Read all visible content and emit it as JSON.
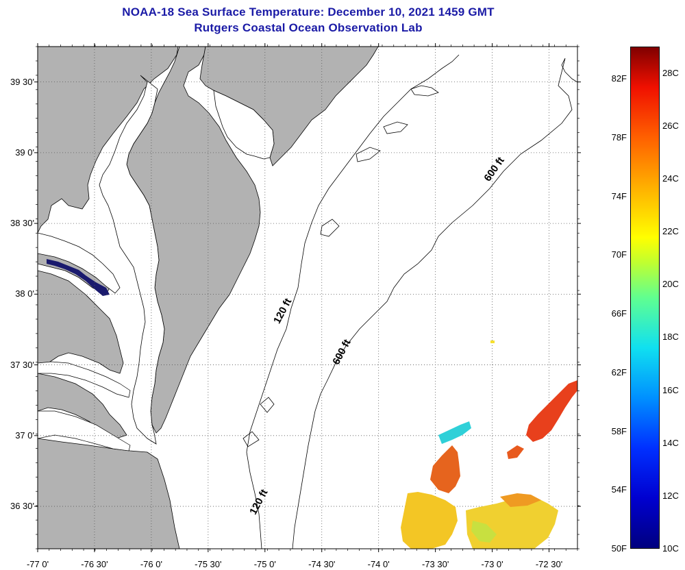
{
  "title": {
    "line1": "NOAA-18 Sea Surface Temperature:  December 10, 2021 1459 GMT",
    "line2": "Rutgers Coastal Ocean Observation Lab"
  },
  "map": {
    "lon_range": [
      -77.0,
      -72.25
    ],
    "lat_range": [
      36.2,
      39.75
    ],
    "land_color": "#b2b2b2",
    "water_color": "#ffffff",
    "grid": true,
    "lon_ticks": [
      {
        "value": -77.0,
        "label": "-77 0'"
      },
      {
        "value": -76.5,
        "label": "-76 30'"
      },
      {
        "value": -76.0,
        "label": "-76 0'"
      },
      {
        "value": -75.5,
        "label": "-75 30'"
      },
      {
        "value": -75.0,
        "label": "-75 0'"
      },
      {
        "value": -74.5,
        "label": "-74 30'"
      },
      {
        "value": -74.0,
        "label": "-74 0'"
      },
      {
        "value": -73.5,
        "label": "-73 30'"
      },
      {
        "value": -73.0,
        "label": "-73 0'"
      },
      {
        "value": -72.5,
        "label": "-72 30'"
      }
    ],
    "lat_ticks": [
      {
        "value": 39.5,
        "label": "39 30'"
      },
      {
        "value": 39.0,
        "label": "39 0'"
      },
      {
        "value": 38.5,
        "label": "38 30'"
      },
      {
        "value": 38.0,
        "label": "38 0'"
      },
      {
        "value": 37.5,
        "label": "37 30'"
      },
      {
        "value": 37.0,
        "label": "37 0'"
      },
      {
        "value": 36.5,
        "label": "36 30'"
      }
    ],
    "isobath_labels": [
      {
        "text": "120 ft",
        "lon": -74.82,
        "lat": 37.87,
        "angle": -62
      },
      {
        "text": "600 ft",
        "lon": -74.3,
        "lat": 37.58,
        "angle": -62
      },
      {
        "text": "600 ft",
        "lon": -72.96,
        "lat": 38.87,
        "angle": -55
      },
      {
        "text": "120 ft",
        "lon": -75.03,
        "lat": 36.52,
        "angle": -62
      }
    ]
  },
  "colorbar": {
    "range_c": [
      10,
      29
    ],
    "fahrenheit_labels": [
      "82F",
      "78F",
      "74F",
      "70F",
      "66F",
      "62F",
      "58F",
      "54F",
      "50F"
    ],
    "celsius_labels": [
      "28C",
      "26C",
      "24C",
      "22C",
      "20C",
      "18C",
      "16C",
      "14C",
      "12C",
      "10C"
    ]
  }
}
